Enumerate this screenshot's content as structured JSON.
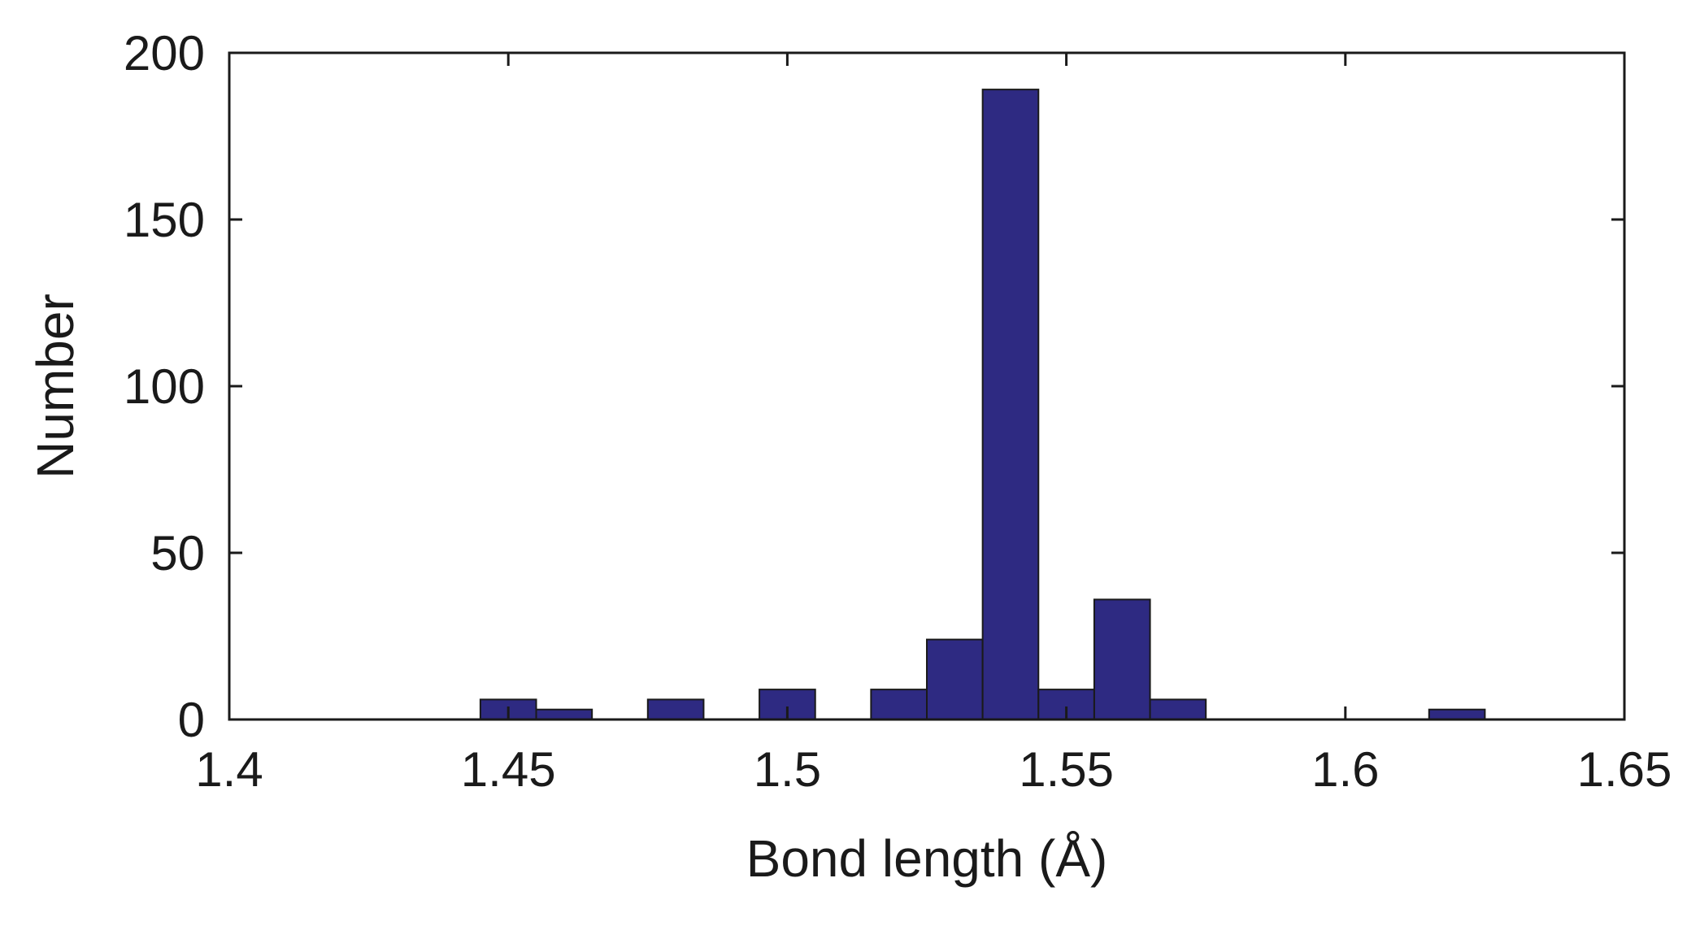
{
  "chart_data": {
    "type": "bar",
    "xlabel": "Bond length (Å)",
    "ylabel": "Number",
    "xlim": [
      1.4,
      1.65
    ],
    "ylim": [
      0,
      200
    ],
    "xticks": [
      "1.4",
      "1.45",
      "1.5",
      "1.55",
      "1.6",
      "1.65"
    ],
    "yticks": [
      "0",
      "50",
      "100",
      "150",
      "200"
    ],
    "bin_width": 0.01,
    "bins": [
      {
        "x": 1.44,
        "value": 0
      },
      {
        "x": 1.45,
        "value": 6
      },
      {
        "x": 1.46,
        "value": 3
      },
      {
        "x": 1.47,
        "value": 0
      },
      {
        "x": 1.48,
        "value": 6
      },
      {
        "x": 1.49,
        "value": 0
      },
      {
        "x": 1.5,
        "value": 9
      },
      {
        "x": 1.51,
        "value": 0
      },
      {
        "x": 1.52,
        "value": 9
      },
      {
        "x": 1.53,
        "value": 24
      },
      {
        "x": 1.54,
        "value": 189
      },
      {
        "x": 1.55,
        "value": 9
      },
      {
        "x": 1.56,
        "value": 36
      },
      {
        "x": 1.57,
        "value": 6
      },
      {
        "x": 1.58,
        "value": 0
      },
      {
        "x": 1.59,
        "value": 0
      },
      {
        "x": 1.6,
        "value": 0
      },
      {
        "x": 1.61,
        "value": 0
      },
      {
        "x": 1.62,
        "value": 3
      },
      {
        "x": 1.63,
        "value": 0
      },
      {
        "x": 1.64,
        "value": 0
      }
    ],
    "bar_color": "#2e2a82",
    "bar_edge_color": "#1a1a1a",
    "grid": false
  }
}
